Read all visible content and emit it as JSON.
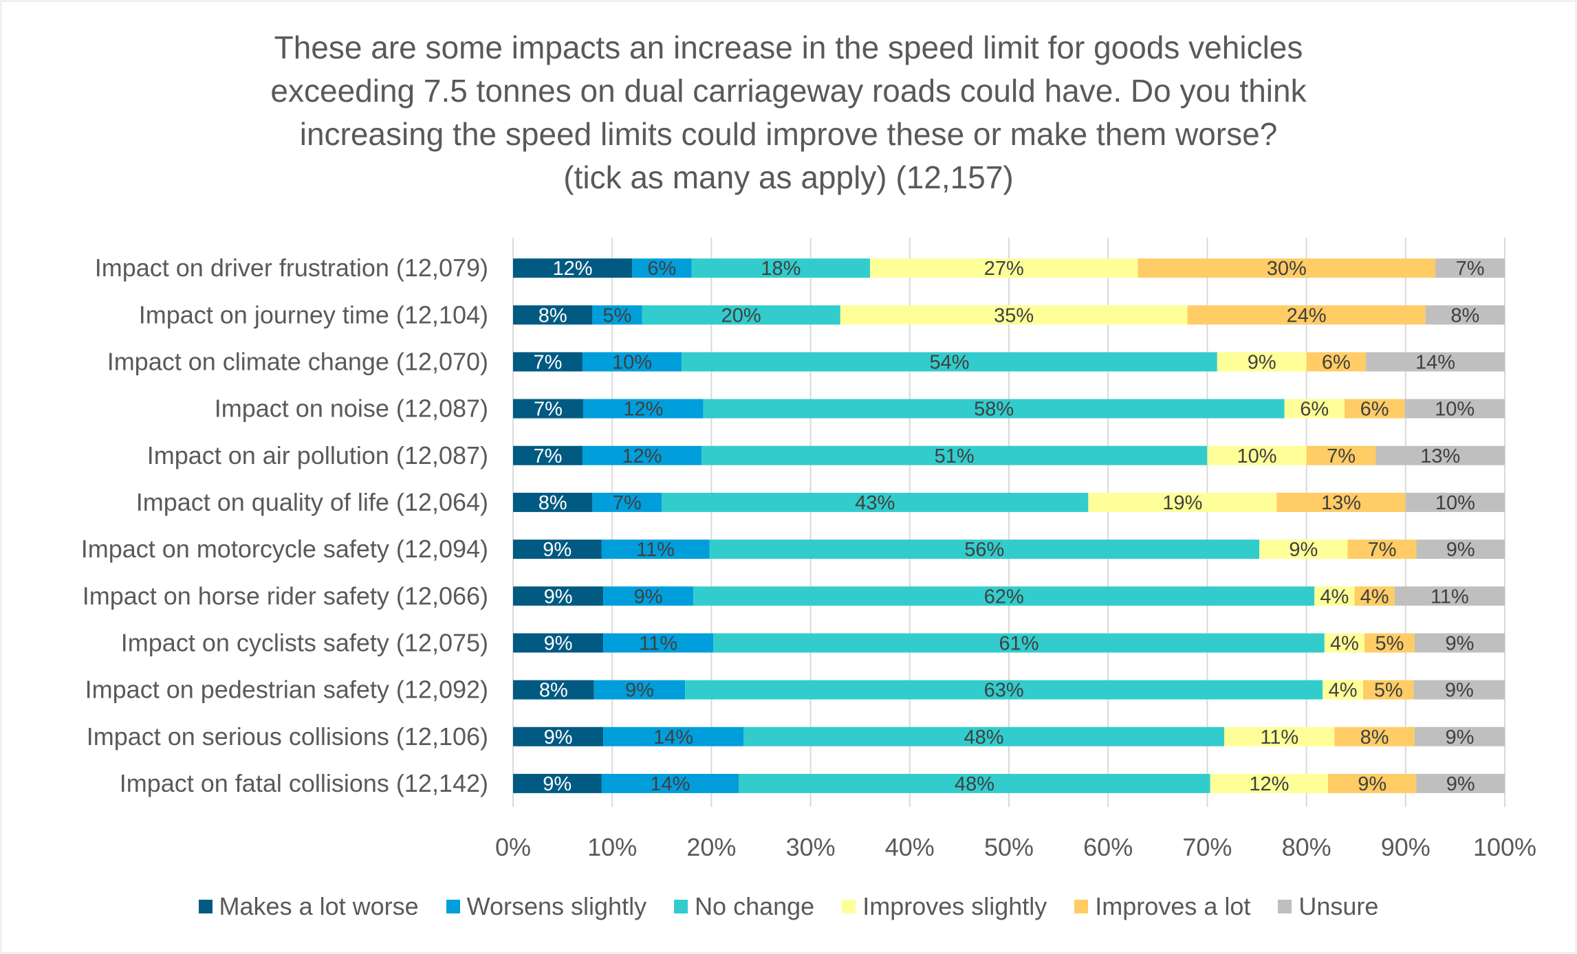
{
  "chart_data": {
    "type": "bar",
    "orientation": "horizontal",
    "stacked": "100%",
    "title": "These are some impacts an increase in the speed limit for goods vehicles exceeding 7.5 tonnes on dual carriageway roads could have. Do you think increasing the speed limits could improve these or make them worse? (tick as many as apply) (12,157)",
    "title_lines": [
      "These are some impacts an increase in the speed limit for goods vehicles",
      "exceeding 7.5 tonnes on dual carriageway roads could have. Do you think",
      "increasing the speed limits could improve these or make them worse?",
      "(tick as many as apply) (12,157)"
    ],
    "xlim": [
      0,
      100
    ],
    "x_ticks": [
      "0%",
      "10%",
      "20%",
      "30%",
      "40%",
      "50%",
      "60%",
      "70%",
      "80%",
      "90%",
      "100%"
    ],
    "grid": true,
    "legend_position": "bottom",
    "categories": [
      "Impact on driver frustration (12,079)",
      "Impact on journey time (12,104)",
      "Impact on climate change (12,070)",
      "Impact on noise (12,087)",
      "Impact on air pollution (12,087)",
      "Impact on quality of life (12,064)",
      "Impact on motorcycle safety (12,094)",
      "Impact on horse rider safety (12,066)",
      "Impact on cyclists safety (12,075)",
      "Impact on pedestrian safety (12,092)",
      "Impact on serious collisions (12,106)",
      "Impact on fatal collisions (12,142)"
    ],
    "series": [
      {
        "name": "Makes a lot worse",
        "color": "#005a82",
        "label_color": "#ffffff",
        "values": [
          12,
          8,
          7,
          7,
          7,
          8,
          9,
          9,
          9,
          8,
          9,
          9
        ]
      },
      {
        "name": "Worsens slightly",
        "color": "#009fdb",
        "label_color": "#404040",
        "values": [
          6,
          5,
          10,
          12,
          12,
          7,
          11,
          9,
          11,
          9,
          14,
          14
        ]
      },
      {
        "name": "No change",
        "color": "#33cccc",
        "label_color": "#404040",
        "values": [
          18,
          20,
          54,
          58,
          51,
          43,
          56,
          62,
          61,
          63,
          48,
          48
        ]
      },
      {
        "name": "Improves slightly",
        "color": "#ffff99",
        "label_color": "#404040",
        "values": [
          27,
          35,
          9,
          6,
          10,
          19,
          9,
          4,
          4,
          4,
          11,
          12
        ]
      },
      {
        "name": "Improves a lot",
        "color": "#ffcc66",
        "label_color": "#404040",
        "values": [
          30,
          24,
          6,
          6,
          7,
          13,
          7,
          4,
          5,
          5,
          8,
          9
        ]
      },
      {
        "name": "Unsure",
        "color": "#bfbfbf",
        "label_color": "#404040",
        "values": [
          7,
          8,
          14,
          10,
          13,
          10,
          9,
          11,
          9,
          9,
          9,
          9
        ]
      }
    ]
  }
}
